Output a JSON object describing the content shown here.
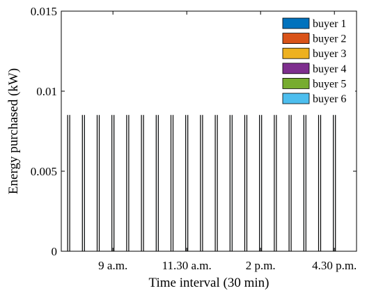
{
  "chart_data": {
    "type": "bar",
    "xlabel": "Time interval (30 min)",
    "ylabel": "Energy purchased (kW)",
    "ylim": [
      0,
      0.015
    ],
    "yticks": [
      {
        "value": 0,
        "label": "0"
      },
      {
        "value": 0.005,
        "label": "0.005"
      },
      {
        "value": 0.01,
        "label": "0.01"
      },
      {
        "value": 0.015,
        "label": "0.015"
      }
    ],
    "xlim": [
      0.5,
      20.5
    ],
    "xticks": [
      {
        "value": 4,
        "label": "9 a.m."
      },
      {
        "value": 9,
        "label": "11.30 a.m."
      },
      {
        "value": 14,
        "label": "2 p.m."
      },
      {
        "value": 19,
        "label": "4.30 p.m."
      }
    ],
    "x": [
      1,
      2,
      3,
      4,
      5,
      6,
      7,
      8,
      9,
      10,
      11,
      12,
      13,
      14,
      15,
      16,
      17,
      18,
      19
    ],
    "grid": false,
    "legend_position": "top-right",
    "series": [
      {
        "name": "buyer 1",
        "color": "#0072BD",
        "values": [
          0.0085,
          0.0085,
          0.0085,
          0.0085,
          0.0085,
          0.0085,
          0.0085,
          0.0085,
          0.0085,
          0.0085,
          0.0085,
          0.0085,
          0.0085,
          0.0085,
          0.0085,
          0.0085,
          0.0085,
          0.0085,
          0.0085
        ]
      },
      {
        "name": "buyer 2",
        "color": "#D95319",
        "values": [
          0,
          0,
          0,
          0,
          0,
          0,
          0,
          0,
          0,
          0,
          0,
          0,
          0,
          0,
          0,
          0,
          0,
          0,
          0
        ]
      },
      {
        "name": "buyer 3",
        "color": "#EDB120",
        "values": [
          0,
          0,
          0,
          0,
          0,
          0,
          0,
          0,
          0,
          0,
          0,
          0,
          0,
          0,
          0,
          0,
          0,
          0,
          0
        ]
      },
      {
        "name": "buyer 4",
        "color": "#7E2F8E",
        "values": [
          0,
          0,
          0,
          0,
          0,
          0,
          0,
          0,
          0,
          0,
          0,
          0,
          0,
          0,
          0,
          0,
          0,
          0,
          0
        ]
      },
      {
        "name": "buyer 5",
        "color": "#77AC30",
        "values": [
          0,
          0,
          0,
          0,
          0,
          0,
          0,
          0,
          0,
          0,
          0,
          0,
          0,
          0,
          0,
          0,
          0,
          0,
          0
        ]
      },
      {
        "name": "buyer 6",
        "color": "#4DBEEE",
        "values": [
          0.0085,
          0.0085,
          0.0085,
          0.0085,
          0.0085,
          0.0085,
          0.0085,
          0.0085,
          0.0085,
          0.0085,
          0.0085,
          0.0085,
          0.0085,
          0.0085,
          0.0085,
          0.0085,
          0.0085,
          0.0085,
          0.0085
        ]
      }
    ]
  }
}
